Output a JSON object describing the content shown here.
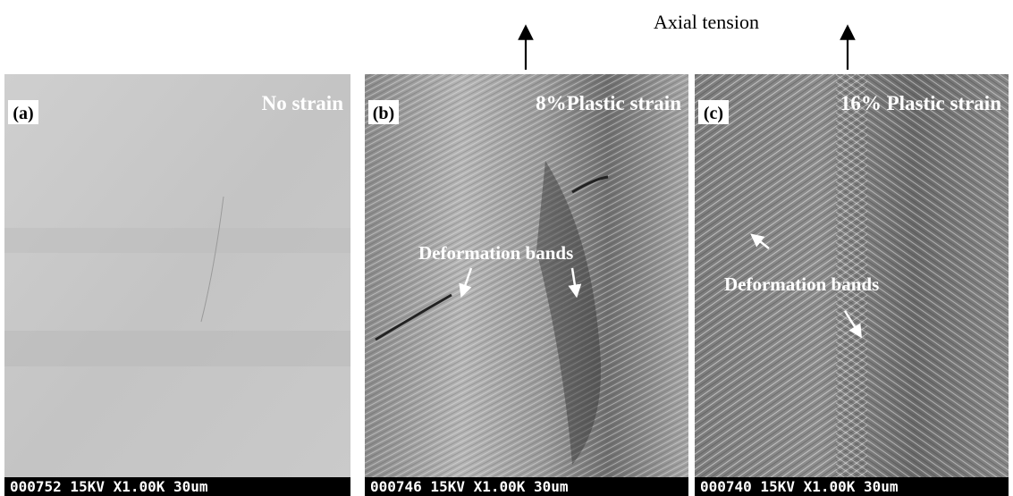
{
  "title": "Axial tension",
  "panels": [
    {
      "label": "(a)",
      "caption": "No strain",
      "footer": "000752 15KV X1.00K 30um"
    },
    {
      "label": "(b)",
      "caption": "8%Plastic strain",
      "annotation": "Deformation bands",
      "footer": "000746 15KV X1.00K 30um"
    },
    {
      "label": "(c)",
      "caption": "16% Plastic strain",
      "annotation": "Deformation bands",
      "footer": "000740 15KV X1.00K 30um"
    }
  ]
}
